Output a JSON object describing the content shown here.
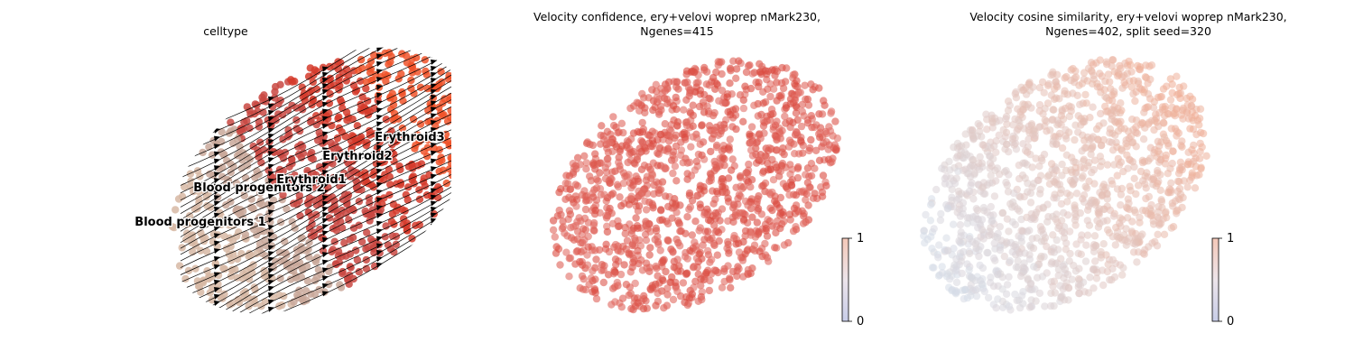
{
  "panels": [
    {
      "title_line1": "celltype",
      "title_line2": ""
    },
    {
      "title_line1": "Velocity confidence, ery+velovi woprep nMark230,",
      "title_line2": "Ngenes=415"
    },
    {
      "title_line1": "Velocity cosine similarity, ery+velovi woprep nMark230,",
      "title_line2": "Ngenes=402, split seed=320"
    }
  ],
  "colorbars": [
    {
      "max_label": "1",
      "min_label": "0"
    },
    {
      "max_label": "1",
      "min_label": "0"
    }
  ],
  "colors": {
    "blood_progenitors_1": "#d7b9a4",
    "blood_progenitors_2": "#c9a89a",
    "erythroid1": "#c94842",
    "erythroid2": "#d53b2b",
    "erythroid3": "#f0542a",
    "confidence": "#d9453a",
    "cosine_low": "#d6dde8",
    "cosine_high": "#f2a88c",
    "colorbar_top": "#f4c8b8",
    "colorbar_bottom": "#c8cde8"
  },
  "chart_data": [
    {
      "type": "scatter",
      "title": "celltype",
      "legend": "on data",
      "axes": "off",
      "stream_arrows": true,
      "series": [
        {
          "name": "Blood progenitors 1",
          "color": "#d7b9a4"
        },
        {
          "name": "Blood progenitors 2",
          "color": "#c9a89a"
        },
        {
          "name": "Erythroid1",
          "color": "#c94842"
        },
        {
          "name": "Erythroid2",
          "color": "#d53b2b"
        },
        {
          "name": "Erythroid3",
          "color": "#f0542a"
        }
      ]
    },
    {
      "type": "scatter",
      "title": "Velocity confidence, ery+velovi woprep nMark230, Ngenes=415",
      "axes": "off",
      "colorbar": {
        "min": 0,
        "max": 1,
        "ticks": [
          "0",
          "1"
        ]
      }
    },
    {
      "type": "scatter",
      "title": "Velocity cosine similarity, ery+velovi woprep nMark230, Ngenes=402, split seed=320",
      "axes": "off",
      "colorbar": {
        "min": 0,
        "max": 1,
        "ticks": [
          "0",
          "1"
        ]
      }
    }
  ]
}
